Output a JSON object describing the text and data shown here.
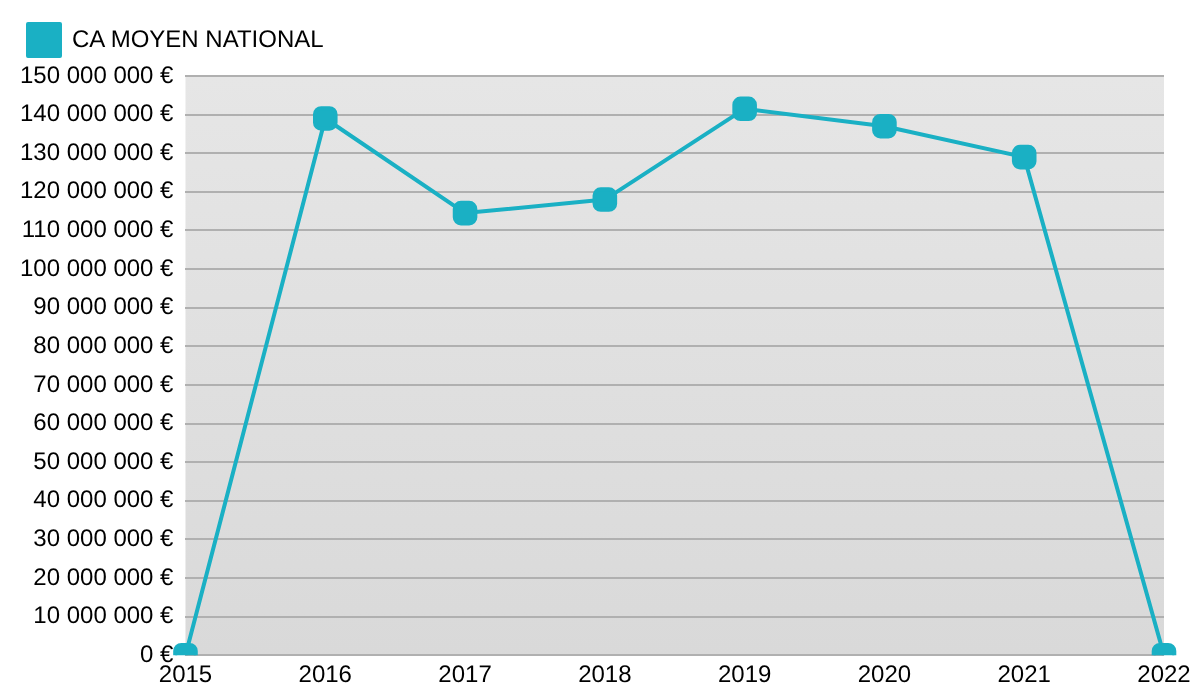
{
  "chart_data": {
    "type": "line",
    "categories": [
      "2015",
      "2016",
      "2017",
      "2018",
      "2019",
      "2020",
      "2021",
      "2022"
    ],
    "series": [
      {
        "name": "CA MOYEN NATIONAL",
        "color": "#1ab0c4",
        "values": [
          0,
          139000000,
          114500000,
          118000000,
          141500000,
          137000000,
          129000000,
          0
        ]
      }
    ],
    "ylim": [
      0,
      150000000
    ],
    "yticks": [
      {
        "value": 0,
        "label": "0 €"
      },
      {
        "value": 10000000,
        "label": "10 000 000 €"
      },
      {
        "value": 20000000,
        "label": "20 000 000 €"
      },
      {
        "value": 30000000,
        "label": "30 000 000 €"
      },
      {
        "value": 40000000,
        "label": "40 000 000 €"
      },
      {
        "value": 50000000,
        "label": "50 000 000 €"
      },
      {
        "value": 60000000,
        "label": "60 000 000 €"
      },
      {
        "value": 70000000,
        "label": "70 000 000 €"
      },
      {
        "value": 80000000,
        "label": "80 000 000 €"
      },
      {
        "value": 90000000,
        "label": "90 000 000 €"
      },
      {
        "value": 100000000,
        "label": "100 000 000 €"
      },
      {
        "value": 110000000,
        "label": "110 000 000 €"
      },
      {
        "value": 120000000,
        "label": "120 000 000 €"
      },
      {
        "value": 130000000,
        "label": "130 000 000 €"
      },
      {
        "value": 140000000,
        "label": "140 000 000 €"
      },
      {
        "value": 150000000,
        "label": "150 000 000 €"
      }
    ],
    "grid": "y",
    "legend": "top left",
    "marker": "square",
    "line_style": "solid"
  }
}
